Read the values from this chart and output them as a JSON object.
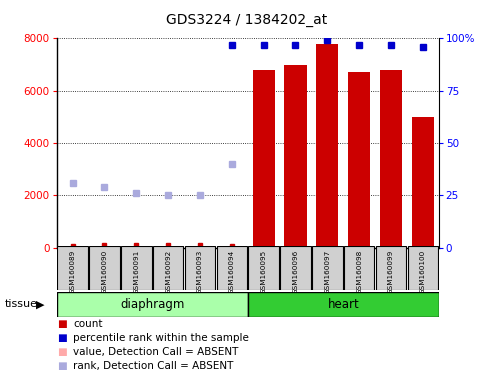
{
  "title": "GDS3224 / 1384202_at",
  "samples": [
    "GSM160089",
    "GSM160090",
    "GSM160091",
    "GSM160092",
    "GSM160093",
    "GSM160094",
    "GSM160095",
    "GSM160096",
    "GSM160097",
    "GSM160098",
    "GSM160099",
    "GSM160100"
  ],
  "bar_values": [
    0,
    0,
    0,
    0,
    0,
    0,
    6800,
    7000,
    7800,
    6700,
    6800,
    5000
  ],
  "bar_color": "#cc0000",
  "count_values": [
    80,
    90,
    100,
    90,
    100,
    80,
    80,
    80,
    80,
    80,
    80,
    80
  ],
  "count_color": "#cc0000",
  "percentile_present_vals": [
    null,
    null,
    null,
    null,
    null,
    97,
    97,
    97,
    99,
    97,
    97,
    96
  ],
  "percentile_absent_vals": [
    31,
    29,
    26,
    25,
    25,
    40,
    null,
    null,
    null,
    null,
    null,
    null
  ],
  "percentile_present_color": "#0000cc",
  "percentile_absent_color": "#aaaadd",
  "ylim_left": [
    0,
    8000
  ],
  "ylim_right": [
    0,
    100
  ],
  "yticks_left": [
    0,
    2000,
    4000,
    6000,
    8000
  ],
  "yticks_right": [
    0,
    25,
    50,
    75,
    100
  ],
  "ytick_labels_right": [
    "0",
    "25",
    "50",
    "75",
    "100%"
  ],
  "tissue_groups": [
    {
      "label": "diaphragm",
      "start": 0,
      "end": 6,
      "color": "#aaffaa"
    },
    {
      "label": "heart",
      "start": 6,
      "end": 12,
      "color": "#33cc33"
    }
  ],
  "background_color": "#ffffff",
  "plot_bg_color": "#ffffff",
  "grid_color": "#000000",
  "legend_items": [
    {
      "label": "count",
      "color": "#cc0000"
    },
    {
      "label": "percentile rank within the sample",
      "color": "#0000cc"
    },
    {
      "label": "value, Detection Call = ABSENT",
      "color": "#ffaaaa"
    },
    {
      "label": "rank, Detection Call = ABSENT",
      "color": "#aaaadd"
    }
  ]
}
